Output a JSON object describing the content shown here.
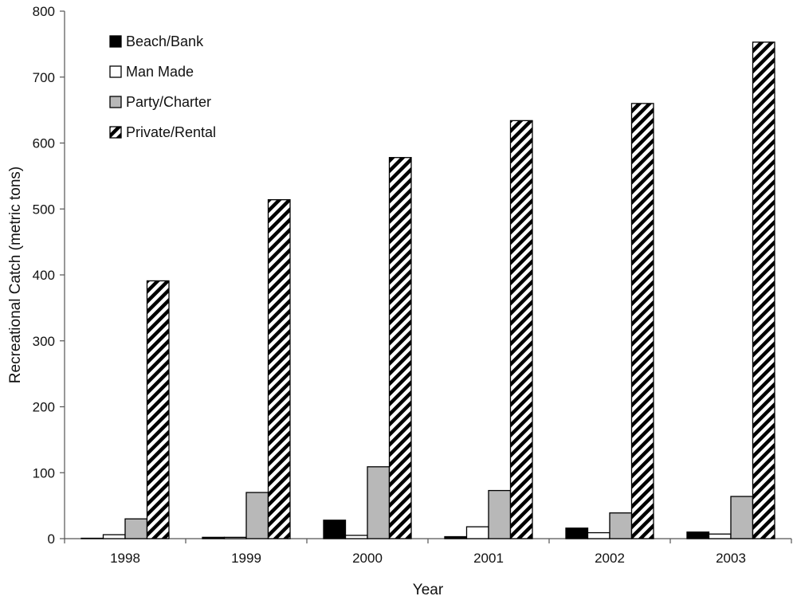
{
  "chart_data": {
    "type": "bar",
    "title": "",
    "xlabel": "Year",
    "ylabel": "Recreational Catch (metric tons)",
    "categories": [
      "1998",
      "1999",
      "2000",
      "2001",
      "2002",
      "2003"
    ],
    "ylim": [
      0,
      800
    ],
    "yticks": [
      0,
      100,
      200,
      300,
      400,
      500,
      600,
      700,
      800
    ],
    "grid": false,
    "legend_position": "top-left",
    "series": [
      {
        "name": "Beach/Bank",
        "fill": "solid-black",
        "values": [
          0,
          2,
          28,
          3,
          16,
          10
        ]
      },
      {
        "name": "Man Made",
        "fill": "white",
        "values": [
          6,
          2,
          5,
          18,
          9,
          7
        ]
      },
      {
        "name": "Party/Charter",
        "fill": "gray",
        "values": [
          30,
          70,
          109,
          73,
          39,
          64
        ]
      },
      {
        "name": "Private/Rental",
        "fill": "diagonal-hatch",
        "values": [
          391,
          514,
          578,
          634,
          660,
          753
        ]
      }
    ]
  },
  "colors": {
    "beach_bank": "#000000",
    "man_made": "#ffffff",
    "party_charter": "#b8b8b8",
    "private_rental_stripe": "#000000",
    "axis": "#555555"
  }
}
